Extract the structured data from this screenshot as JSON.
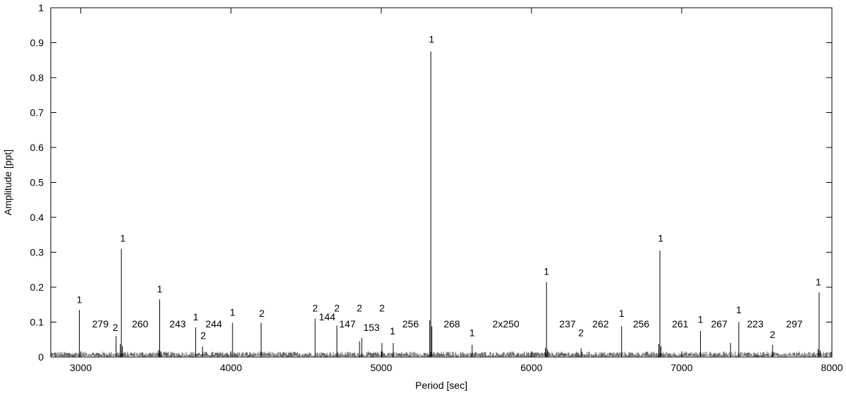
{
  "chart_data": {
    "type": "line",
    "xlabel": "Period [sec]",
    "ylabel": "Amplitude [ppt]",
    "xlim": [
      2800,
      8000
    ],
    "ylim": [
      0,
      1
    ],
    "xticks": [
      3000,
      4000,
      5000,
      6000,
      7000,
      8000
    ],
    "yticks": [
      0,
      0.1,
      0.2,
      0.3,
      0.4,
      0.5,
      0.6,
      0.7,
      0.8,
      0.9,
      1
    ],
    "ytick_labels": [
      "0",
      "0.1",
      "0.2",
      "0.3",
      "0.4",
      "0.5",
      "0.6",
      "0.7",
      "0.8",
      "0.9",
      "1"
    ],
    "noise_level": 0.012,
    "peaks": [
      {
        "x": 2990,
        "y": 0.135
      },
      {
        "x": 3235,
        "y": 0.06
      },
      {
        "x": 3270,
        "y": 0.31
      },
      {
        "x": 3525,
        "y": 0.165
      },
      {
        "x": 3765,
        "y": 0.085
      },
      {
        "x": 3810,
        "y": 0.03
      },
      {
        "x": 4010,
        "y": 0.098
      },
      {
        "x": 4200,
        "y": 0.098
      },
      {
        "x": 4560,
        "y": 0.11
      },
      {
        "x": 4705,
        "y": 0.09
      },
      {
        "x": 4855,
        "y": 0.045
      },
      {
        "x": 4870,
        "y": 0.055
      },
      {
        "x": 5005,
        "y": 0.04
      },
      {
        "x": 5080,
        "y": 0.04
      },
      {
        "x": 5330,
        "y": 0.875
      },
      {
        "x": 5605,
        "y": 0.035
      },
      {
        "x": 6100,
        "y": 0.215
      },
      {
        "x": 6330,
        "y": 0.025
      },
      {
        "x": 6600,
        "y": 0.088
      },
      {
        "x": 6855,
        "y": 0.305
      },
      {
        "x": 7125,
        "y": 0.075
      },
      {
        "x": 7325,
        "y": 0.04
      },
      {
        "x": 7380,
        "y": 0.1
      },
      {
        "x": 7605,
        "y": 0.035
      },
      {
        "x": 7915,
        "y": 0.185
      }
    ],
    "annotations": [
      {
        "text": "1",
        "x": 2990,
        "y": 0.155
      },
      {
        "text": "279",
        "x": 3130,
        "y": 0.085
      },
      {
        "text": "2",
        "x": 3230,
        "y": 0.075
      },
      {
        "text": "1",
        "x": 3280,
        "y": 0.33
      },
      {
        "text": "260",
        "x": 3395,
        "y": 0.085
      },
      {
        "text": "1",
        "x": 3525,
        "y": 0.185
      },
      {
        "text": "243",
        "x": 3645,
        "y": 0.085
      },
      {
        "text": "1",
        "x": 3765,
        "y": 0.105
      },
      {
        "text": "244",
        "x": 3885,
        "y": 0.085
      },
      {
        "text": "2",
        "x": 3815,
        "y": 0.052
      },
      {
        "text": "1",
        "x": 4010,
        "y": 0.118
      },
      {
        "text": "2",
        "x": 4205,
        "y": 0.115
      },
      {
        "text": "2",
        "x": 4560,
        "y": 0.13
      },
      {
        "text": "144",
        "x": 4640,
        "y": 0.105
      },
      {
        "text": "2",
        "x": 4705,
        "y": 0.13
      },
      {
        "text": "147",
        "x": 4775,
        "y": 0.085
      },
      {
        "text": "2",
        "x": 4855,
        "y": 0.13
      },
      {
        "text": "153",
        "x": 4935,
        "y": 0.075
      },
      {
        "text": "2",
        "x": 5005,
        "y": 0.13
      },
      {
        "text": "1",
        "x": 5075,
        "y": 0.065
      },
      {
        "text": "256",
        "x": 5195,
        "y": 0.085
      },
      {
        "text": "1",
        "x": 5335,
        "y": 0.9
      },
      {
        "text": "268",
        "x": 5470,
        "y": 0.085
      },
      {
        "text": "1",
        "x": 5605,
        "y": 0.06
      },
      {
        "text": "2x250",
        "x": 5830,
        "y": 0.085
      },
      {
        "text": "1",
        "x": 6100,
        "y": 0.235
      },
      {
        "text": "237",
        "x": 6240,
        "y": 0.085
      },
      {
        "text": "2",
        "x": 6330,
        "y": 0.06
      },
      {
        "text": "262",
        "x": 6460,
        "y": 0.085
      },
      {
        "text": "1",
        "x": 6600,
        "y": 0.115
      },
      {
        "text": "256",
        "x": 6730,
        "y": 0.085
      },
      {
        "text": "1",
        "x": 6860,
        "y": 0.33
      },
      {
        "text": "261",
        "x": 6990,
        "y": 0.085
      },
      {
        "text": "1",
        "x": 7125,
        "y": 0.098
      },
      {
        "text": "267",
        "x": 7250,
        "y": 0.085
      },
      {
        "text": "1",
        "x": 7380,
        "y": 0.125
      },
      {
        "text": "223",
        "x": 7490,
        "y": 0.085
      },
      {
        "text": "2",
        "x": 7605,
        "y": 0.055
      },
      {
        "text": "297",
        "x": 7750,
        "y": 0.085
      },
      {
        "text": "1",
        "x": 7910,
        "y": 0.205
      }
    ]
  }
}
